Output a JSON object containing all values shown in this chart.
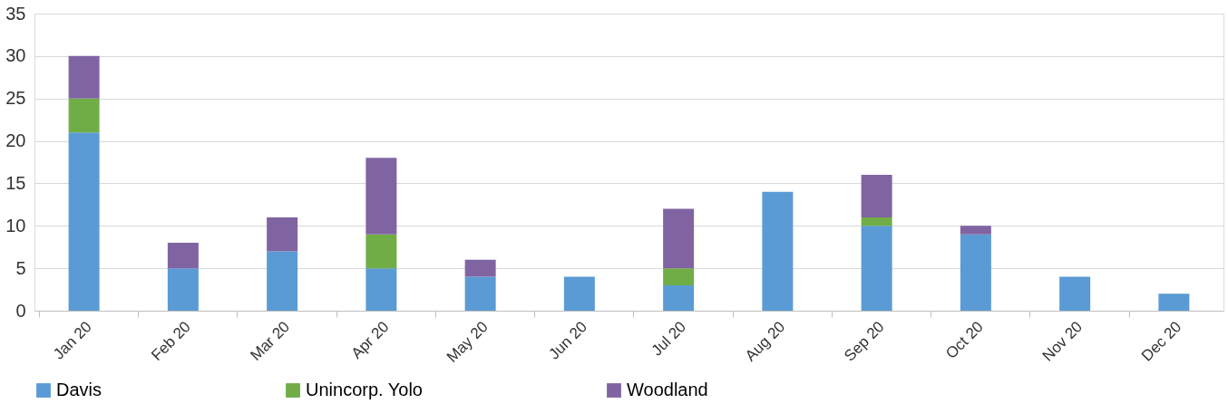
{
  "chart_data": {
    "type": "bar",
    "stacked": true,
    "categories": [
      "Jan 20",
      "Feb 20",
      "Mar 20",
      "Apr 20",
      "May 20",
      "Jun 20",
      "Jul 20",
      "Aug 20",
      "Sep 20",
      "Oct 20",
      "Nov 20",
      "Dec 20"
    ],
    "series": [
      {
        "name": "Davis",
        "color": "#5b9bd5",
        "values": [
          21,
          5,
          7,
          5,
          4,
          4,
          3,
          14,
          10,
          9,
          4,
          2
        ]
      },
      {
        "name": "Unincorp. Yolo",
        "color": "#70ad47",
        "values": [
          4,
          0,
          0,
          4,
          0,
          0,
          2,
          0,
          1,
          0,
          0,
          0
        ]
      },
      {
        "name": "Woodland",
        "color": "#8064a2",
        "values": [
          5,
          3,
          4,
          9,
          2,
          0,
          7,
          0,
          5,
          1,
          0,
          0
        ]
      }
    ],
    "ylim": [
      0,
      35
    ],
    "yticks": [
      0,
      5,
      10,
      15,
      20,
      25,
      30,
      35
    ],
    "grid": "y",
    "legend": "bottom"
  }
}
